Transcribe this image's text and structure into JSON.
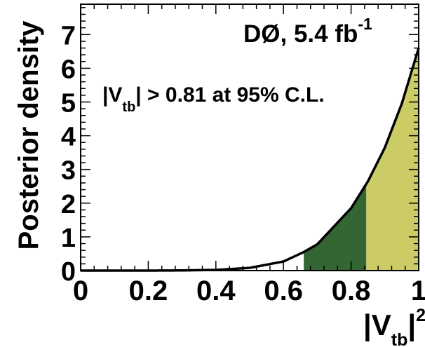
{
  "chart_data": {
    "type": "area",
    "title": "",
    "experiment_label": "DØ, 5.4 fb",
    "experiment_label_sup": "-1",
    "annotation": {
      "prefix": "|V",
      "sub": "tb",
      "suffix": "| > 0.81 at 95% C.L."
    },
    "ylabel": "Posterior density",
    "xlabel": {
      "prefix": "|V",
      "sub": "tb",
      "suffix": "|",
      "sup": "2"
    },
    "xlim": [
      0,
      1
    ],
    "ylim": [
      0,
      7.9
    ],
    "x_ticks": [
      "0",
      "0.2",
      "0.4",
      "0.6",
      "0.8",
      "1"
    ],
    "y_ticks": [
      "0",
      "1",
      "2",
      "3",
      "4",
      "5",
      "6",
      "7"
    ],
    "curve": {
      "x": [
        0.0,
        0.1,
        0.2,
        0.3,
        0.4,
        0.5,
        0.6,
        0.66,
        0.7,
        0.8,
        0.85,
        0.9,
        0.95,
        1.0
      ],
      "y": [
        0.0,
        0.0,
        0.0,
        0.005,
        0.02,
        0.08,
        0.27,
        0.55,
        0.78,
        1.85,
        2.65,
        3.65,
        4.95,
        6.6
      ]
    },
    "bands": [
      {
        "from": 0.66,
        "to": 0.845,
        "color": "#336633"
      },
      {
        "from": 0.845,
        "to": 1.0,
        "color": "#cccc66"
      }
    ]
  }
}
